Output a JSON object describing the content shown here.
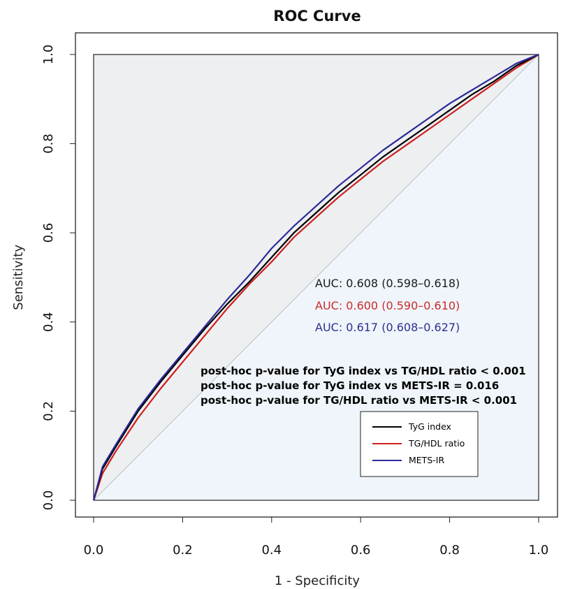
{
  "chart_data": {
    "type": "line",
    "title": "ROC Curve",
    "xlabel": "1 - Specificity",
    "ylabel": "Sensitivity",
    "xlim": [
      0,
      1
    ],
    "ylim": [
      0,
      1
    ],
    "xticks": [
      "0.0",
      "0.2",
      "0.4",
      "0.6",
      "0.8",
      "1.0"
    ],
    "yticks": [
      "0.0",
      "0.2",
      "0.4",
      "0.6",
      "0.8",
      "1.0"
    ],
    "reference_line": {
      "x": [
        0,
        1
      ],
      "y": [
        0,
        1
      ],
      "color": "#b8c4cc"
    },
    "series": [
      {
        "name": "TyG index",
        "color": "#000000",
        "x": [
          0,
          0.02,
          0.05,
          0.1,
          0.15,
          0.2,
          0.25,
          0.3,
          0.35,
          0.4,
          0.45,
          0.5,
          0.55,
          0.6,
          0.65,
          0.7,
          0.75,
          0.8,
          0.85,
          0.9,
          0.95,
          1.0
        ],
        "y": [
          0,
          0.07,
          0.12,
          0.2,
          0.265,
          0.325,
          0.385,
          0.44,
          0.49,
          0.545,
          0.6,
          0.645,
          0.69,
          0.73,
          0.77,
          0.805,
          0.84,
          0.875,
          0.91,
          0.94,
          0.975,
          1.0
        ]
      },
      {
        "name": "TG/HDL ratio",
        "color": "#cc1f1f",
        "x": [
          0,
          0.02,
          0.05,
          0.1,
          0.15,
          0.2,
          0.25,
          0.3,
          0.35,
          0.4,
          0.45,
          0.5,
          0.55,
          0.6,
          0.65,
          0.7,
          0.75,
          0.8,
          0.85,
          0.9,
          0.95,
          1.0
        ],
        "y": [
          0,
          0.06,
          0.11,
          0.185,
          0.25,
          0.31,
          0.37,
          0.43,
          0.485,
          0.535,
          0.59,
          0.635,
          0.68,
          0.72,
          0.76,
          0.795,
          0.83,
          0.865,
          0.9,
          0.935,
          0.97,
          1.0
        ]
      },
      {
        "name": "METS-IR",
        "color": "#2a2a9a",
        "x": [
          0,
          0.02,
          0.05,
          0.1,
          0.15,
          0.2,
          0.25,
          0.3,
          0.35,
          0.4,
          0.45,
          0.5,
          0.55,
          0.6,
          0.65,
          0.7,
          0.75,
          0.8,
          0.85,
          0.9,
          0.95,
          1.0
        ],
        "y": [
          0,
          0.075,
          0.125,
          0.205,
          0.27,
          0.33,
          0.39,
          0.45,
          0.505,
          0.565,
          0.615,
          0.66,
          0.705,
          0.745,
          0.785,
          0.82,
          0.855,
          0.89,
          0.92,
          0.95,
          0.98,
          1.0
        ]
      }
    ],
    "annotations": {
      "auc": [
        {
          "text": "AUC: 0.608 (0.598–0.618)",
          "color": "#1a1a1a"
        },
        {
          "text": "AUC: 0.600 (0.590–0.610)",
          "color": "#cc2a2a"
        },
        {
          "text": "AUC: 0.617 (0.608–0.627)",
          "color": "#2e2e90"
        }
      ],
      "notes": [
        "post-hoc p-value for TyG index vs TG/HDL ratio < 0.001",
        "post-hoc p-value for TyG index vs METS-IR = 0.016",
        "post-hoc p-value for TG/HDL ratio vs METS-IR < 0.001"
      ]
    },
    "legend": {
      "position": "bottom-right",
      "entries": [
        "TyG index",
        "TG/HDL ratio",
        "METS-IR"
      ]
    },
    "colors": {
      "upper_region": "#eeeff0",
      "lower_region": "#eff5fa"
    }
  }
}
